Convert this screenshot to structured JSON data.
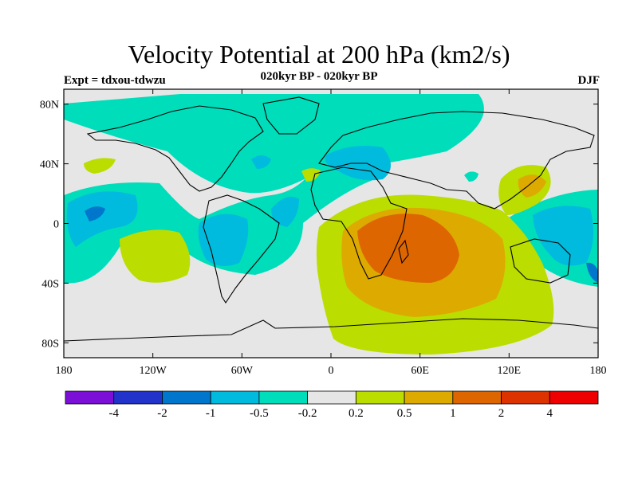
{
  "title": "Velocity Potential at 200 hPa (km2/s)",
  "subtitle": "020kyr BP - 020kyr BP",
  "experiment": "Expt = tdxou-tdwzu",
  "season": "DJF",
  "map": {
    "projection": "cylindrical-equidistant",
    "lon_range": [
      -180,
      180
    ],
    "lat_range": [
      -90,
      90
    ],
    "ocean_background": "#e6e6e6",
    "lat_ticks": [
      {
        "value": 80,
        "label": "80N"
      },
      {
        "value": 40,
        "label": "40N"
      },
      {
        "value": 0,
        "label": "0"
      },
      {
        "value": -40,
        "label": "40S"
      },
      {
        "value": -80,
        "label": "80S"
      }
    ],
    "lon_ticks": [
      {
        "value": -180,
        "label": "180"
      },
      {
        "value": -120,
        "label": "120W"
      },
      {
        "value": -60,
        "label": "60W"
      },
      {
        "value": 0,
        "label": "0"
      },
      {
        "value": 60,
        "label": "60E"
      },
      {
        "value": 120,
        "label": "120E"
      },
      {
        "value": 180,
        "label": "180"
      }
    ]
  },
  "colorbar": {
    "colors": [
      "#7b0fd8",
      "#2233cc",
      "#0077cc",
      "#00bbdd",
      "#00ddbb",
      "#e6e6e6",
      "#bbdd00",
      "#ddaa00",
      "#dd6600",
      "#dd3300",
      "#ee0000"
    ],
    "labels": [
      "-4",
      "-2",
      "-1",
      "-0.5",
      "-0.2",
      "0.2",
      "0.5",
      "1",
      "2",
      "4"
    ]
  }
}
